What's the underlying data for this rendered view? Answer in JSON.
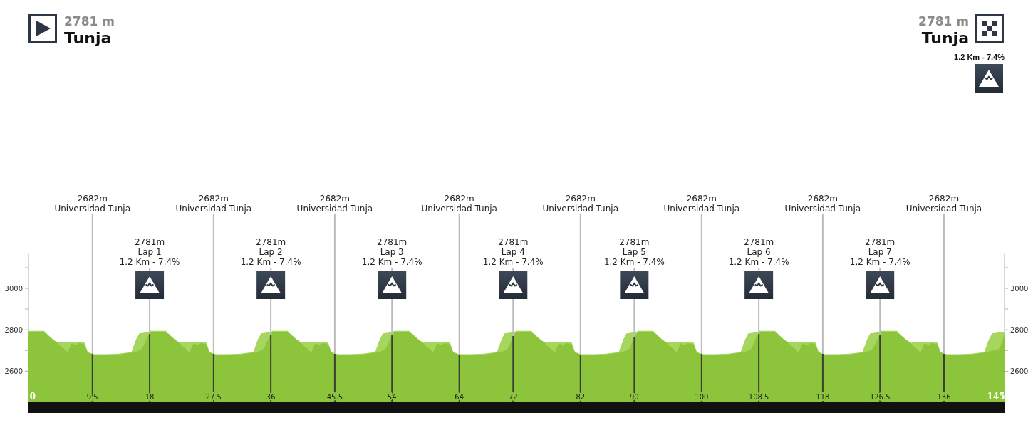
{
  "chart_data": {
    "type": "area",
    "annotations": [
      "2781 m",
      "Tunja",
      "2781 m",
      "Tunja",
      "1.2 Km - 7.4%"
    ],
    "x": [
      0,
      2.3,
      3,
      3.7,
      4.4,
      4.6,
      5.2,
      5.8,
      6.4,
      7,
      7.5,
      8.3,
      8.8,
      9.7,
      11.6,
      13.4,
      15.3,
      15.6,
      16,
      16.5,
      16.9,
      17.4,
      17.7,
      18,
      18.1,
      20.4,
      21.1,
      21.8,
      22.5,
      22.7,
      23.3,
      23.9,
      24.5,
      25.1,
      25.6,
      26.4,
      26.9,
      27.8,
      29.7,
      31.5,
      33.4,
      33.7,
      34.1,
      34.6,
      35,
      35.5,
      35.8,
      36.1,
      36.2,
      38.5,
      39.2,
      39.9,
      40.6,
      40.8,
      41.4,
      42,
      42.6,
      43.2,
      43.7,
      44.5,
      45,
      45.9,
      47.8,
      49.6,
      51.5,
      51.8,
      52.2,
      52.7,
      53.1,
      53.6,
      53.9,
      54.2,
      54.3,
      56.6,
      57.3,
      58,
      58.7,
      58.9,
      59.5,
      60.1,
      60.7,
      61.3,
      61.8,
      62.6,
      63.1,
      64,
      65.9,
      67.7,
      69.6,
      69.9,
      70.3,
      70.8,
      71.2,
      71.7,
      72,
      72.3,
      72.4,
      74.7,
      75.4,
      76.1,
      76.8,
      77,
      77.6,
      78.2,
      78.8,
      79.4,
      79.9,
      80.7,
      81.2,
      82.1,
      84,
      85.8,
      87.7,
      88,
      88.4,
      88.9,
      89.3,
      89.8,
      90.1,
      90.4,
      90.5,
      92.8,
      93.5,
      94.2,
      94.9,
      95.1,
      95.7,
      96.3,
      96.9,
      97.5,
      98,
      98.8,
      99.3,
      100.2,
      102.1,
      103.9,
      105.8,
      106.1,
      106.5,
      107,
      107.4,
      107.9,
      108.2,
      108.5,
      108.6,
      110.9,
      111.6,
      112.3,
      113,
      113.2,
      113.8,
      114.4,
      115,
      115.6,
      116.1,
      116.9,
      117.4,
      118.3,
      120.2,
      122,
      123.9,
      124.2,
      124.6,
      125.1,
      125.5,
      126,
      126.3,
      126.6,
      126.7,
      129,
      129.7,
      130.4,
      131.1,
      131.3,
      131.9,
      132.5,
      133.1,
      133.7,
      134.2,
      135,
      135.5,
      136.4,
      138.3,
      140.1,
      142,
      142.3,
      142.7,
      143.2,
      143.6,
      144.1,
      144.4,
      145
    ],
    "series": [
      {
        "color": "#a6d65e",
        "values": [
          2795,
          2795,
          2772,
          2752,
          2737,
          2740,
          2740,
          2740,
          2740,
          2740,
          2740,
          2740,
          2692,
          2682,
          2682,
          2685,
          2692,
          2720,
          2755,
          2785,
          2788,
          2790,
          2790,
          2790,
          2795,
          2795,
          2772,
          2752,
          2737,
          2740,
          2740,
          2740,
          2740,
          2740,
          2740,
          2740,
          2692,
          2682,
          2682,
          2685,
          2692,
          2720,
          2755,
          2785,
          2788,
          2790,
          2790,
          2790,
          2795,
          2795,
          2772,
          2752,
          2737,
          2740,
          2740,
          2740,
          2740,
          2740,
          2740,
          2740,
          2692,
          2682,
          2682,
          2685,
          2692,
          2720,
          2755,
          2785,
          2788,
          2790,
          2790,
          2790,
          2795,
          2795,
          2772,
          2752,
          2737,
          2740,
          2740,
          2740,
          2740,
          2740,
          2740,
          2740,
          2692,
          2682,
          2682,
          2685,
          2692,
          2720,
          2755,
          2785,
          2788,
          2790,
          2790,
          2790,
          2795,
          2795,
          2772,
          2752,
          2737,
          2740,
          2740,
          2740,
          2740,
          2740,
          2740,
          2740,
          2692,
          2682,
          2682,
          2685,
          2692,
          2720,
          2755,
          2785,
          2788,
          2790,
          2790,
          2790,
          2795,
          2795,
          2772,
          2752,
          2737,
          2740,
          2740,
          2740,
          2740,
          2740,
          2740,
          2740,
          2692,
          2682,
          2682,
          2685,
          2692,
          2720,
          2755,
          2785,
          2788,
          2790,
          2790,
          2790,
          2795,
          2795,
          2772,
          2752,
          2737,
          2740,
          2740,
          2740,
          2740,
          2740,
          2740,
          2740,
          2692,
          2682,
          2682,
          2685,
          2692,
          2720,
          2755,
          2785,
          2788,
          2790,
          2790,
          2790,
          2795,
          2795,
          2772,
          2752,
          2737,
          2740,
          2740,
          2740,
          2740,
          2740,
          2740,
          2740,
          2692,
          2682,
          2682,
          2685,
          2692,
          2720,
          2755,
          2785,
          2788,
          2790,
          2790,
          2790
        ]
      },
      {
        "color": "#8cc43c",
        "values": [
          2790,
          2790,
          2770,
          2750,
          2735,
          2725,
          2710,
          2690,
          2735,
          2725,
          2735,
          2730,
          2690,
          2680,
          2680,
          2680,
          2690,
          2690,
          2695,
          2700,
          2710,
          2745,
          2770,
          2780,
          2790,
          2790,
          2770,
          2750,
          2735,
          2725,
          2710,
          2690,
          2735,
          2725,
          2735,
          2730,
          2690,
          2680,
          2680,
          2680,
          2690,
          2690,
          2695,
          2700,
          2710,
          2745,
          2770,
          2780,
          2790,
          2790,
          2770,
          2750,
          2735,
          2725,
          2710,
          2690,
          2735,
          2725,
          2735,
          2730,
          2690,
          2680,
          2680,
          2680,
          2690,
          2690,
          2695,
          2700,
          2710,
          2745,
          2770,
          2780,
          2790,
          2790,
          2770,
          2750,
          2735,
          2725,
          2710,
          2690,
          2735,
          2725,
          2735,
          2730,
          2690,
          2680,
          2680,
          2680,
          2690,
          2690,
          2695,
          2700,
          2710,
          2745,
          2770,
          2780,
          2790,
          2790,
          2770,
          2750,
          2735,
          2725,
          2710,
          2690,
          2735,
          2725,
          2735,
          2730,
          2690,
          2680,
          2680,
          2680,
          2690,
          2690,
          2695,
          2700,
          2710,
          2745,
          2770,
          2780,
          2790,
          2790,
          2770,
          2750,
          2735,
          2725,
          2710,
          2690,
          2735,
          2725,
          2735,
          2730,
          2690,
          2680,
          2680,
          2680,
          2690,
          2690,
          2695,
          2700,
          2710,
          2745,
          2770,
          2780,
          2790,
          2790,
          2770,
          2750,
          2735,
          2725,
          2710,
          2690,
          2735,
          2725,
          2735,
          2730,
          2690,
          2680,
          2680,
          2680,
          2690,
          2690,
          2695,
          2700,
          2710,
          2745,
          2770,
          2780,
          2790,
          2790,
          2770,
          2750,
          2735,
          2725,
          2710,
          2690,
          2735,
          2725,
          2735,
          2730,
          2690,
          2680,
          2680,
          2680,
          2690,
          2690,
          2695,
          2700,
          2700,
          2705,
          2720,
          2780
        ]
      }
    ],
    "xlim": [
      0,
      145
    ],
    "xticks": [
      0,
      9.5,
      18,
      27.5,
      36,
      45.5,
      54,
      64,
      72,
      82,
      90,
      100,
      108.5,
      118,
      126.5,
      136,
      145
    ],
    "ylim": [
      2450,
      3165
    ],
    "yticks": [
      {
        "value": 2500,
        "label": null
      },
      2600,
      {
        "value": 2700,
        "label": null
      },
      2800,
      {
        "value": 2900,
        "label": null
      },
      3000,
      {
        "value": 3100,
        "label": null
      }
    ],
    "y2lim": [
      2450,
      3165
    ],
    "y2ticks": [
      {
        "value": 2500,
        "label": null
      },
      2600,
      {
        "value": 2700,
        "label": null
      },
      2800,
      {
        "value": 2900,
        "label": null
      },
      3000,
      {
        "value": 3100,
        "label": null
      }
    ],
    "ref_lines": [
      {
        "axis": "x",
        "value": 9.5,
        "label": "2682m\nUniversidad Tunja"
      },
      {
        "axis": "x",
        "value": 18,
        "label": "2781m\nLap 1\n1.2 Km - 7.4%"
      },
      {
        "axis": "x",
        "value": 27.5,
        "label": "2682m\nUniversidad Tunja"
      },
      {
        "axis": "x",
        "value": 36,
        "label": "2781m\nLap 2\n1.2 Km - 7.4%"
      },
      {
        "axis": "x",
        "value": 45.5,
        "label": "2682m\nUniversidad Tunja"
      },
      {
        "axis": "x",
        "value": 54,
        "label": "2781m\nLap 3\n1.2 Km - 7.4%"
      },
      {
        "axis": "x",
        "value": 64,
        "label": "2682m\nUniversidad Tunja"
      },
      {
        "axis": "x",
        "value": 72,
        "label": "2781m\nLap 4\n1.2 Km - 7.4%"
      },
      {
        "axis": "x",
        "value": 82,
        "label": "2682m\nUniversidad Tunja"
      },
      {
        "axis": "x",
        "value": 90,
        "label": "2781m\nLap 5\n1.2 Km - 7.4%"
      },
      {
        "axis": "x",
        "value": 100,
        "label": "2682m\nUniversidad Tunja"
      },
      {
        "axis": "x",
        "value": 108.5,
        "label": "2781m\nLap 6\n1.2 Km - 7.4%"
      },
      {
        "axis": "x",
        "value": 118,
        "label": "2682m\nUniversidad Tunja"
      },
      {
        "axis": "x",
        "value": 126.5,
        "label": "2781m\nLap 7\n1.2 Km - 7.4%"
      },
      {
        "axis": "x",
        "value": 136,
        "label": "2682m\nUniversidad Tunja"
      }
    ]
  }
}
